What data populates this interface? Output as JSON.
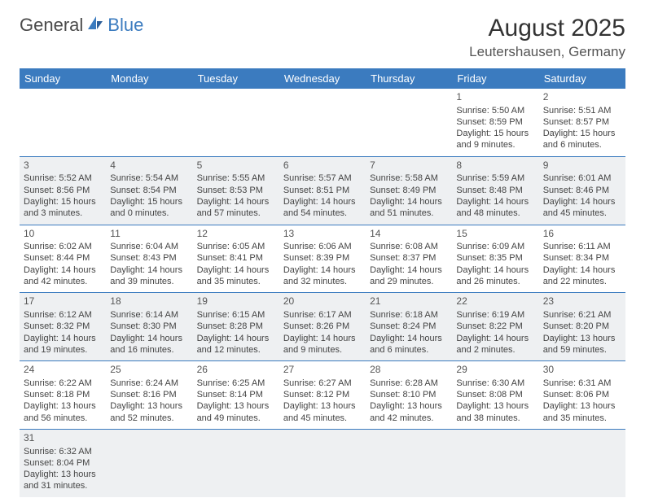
{
  "logo": {
    "word1": "General",
    "word2": "Blue"
  },
  "title": "August 2025",
  "location": "Leutershausen, Germany",
  "colors": {
    "header_bg": "#3b7bbf",
    "header_text": "#ffffff",
    "shade_bg": "#eef0f2",
    "border": "#3b7bbf",
    "text": "#444444"
  },
  "weekdays": [
    "Sunday",
    "Monday",
    "Tuesday",
    "Wednesday",
    "Thursday",
    "Friday",
    "Saturday"
  ],
  "weeks": [
    [
      null,
      null,
      null,
      null,
      null,
      {
        "n": "1",
        "sr": "Sunrise: 5:50 AM",
        "ss": "Sunset: 8:59 PM",
        "d1": "Daylight: 15 hours",
        "d2": "and 9 minutes."
      },
      {
        "n": "2",
        "sr": "Sunrise: 5:51 AM",
        "ss": "Sunset: 8:57 PM",
        "d1": "Daylight: 15 hours",
        "d2": "and 6 minutes."
      }
    ],
    [
      {
        "n": "3",
        "sr": "Sunrise: 5:52 AM",
        "ss": "Sunset: 8:56 PM",
        "d1": "Daylight: 15 hours",
        "d2": "and 3 minutes."
      },
      {
        "n": "4",
        "sr": "Sunrise: 5:54 AM",
        "ss": "Sunset: 8:54 PM",
        "d1": "Daylight: 15 hours",
        "d2": "and 0 minutes."
      },
      {
        "n": "5",
        "sr": "Sunrise: 5:55 AM",
        "ss": "Sunset: 8:53 PM",
        "d1": "Daylight: 14 hours",
        "d2": "and 57 minutes."
      },
      {
        "n": "6",
        "sr": "Sunrise: 5:57 AM",
        "ss": "Sunset: 8:51 PM",
        "d1": "Daylight: 14 hours",
        "d2": "and 54 minutes."
      },
      {
        "n": "7",
        "sr": "Sunrise: 5:58 AM",
        "ss": "Sunset: 8:49 PM",
        "d1": "Daylight: 14 hours",
        "d2": "and 51 minutes."
      },
      {
        "n": "8",
        "sr": "Sunrise: 5:59 AM",
        "ss": "Sunset: 8:48 PM",
        "d1": "Daylight: 14 hours",
        "d2": "and 48 minutes."
      },
      {
        "n": "9",
        "sr": "Sunrise: 6:01 AM",
        "ss": "Sunset: 8:46 PM",
        "d1": "Daylight: 14 hours",
        "d2": "and 45 minutes."
      }
    ],
    [
      {
        "n": "10",
        "sr": "Sunrise: 6:02 AM",
        "ss": "Sunset: 8:44 PM",
        "d1": "Daylight: 14 hours",
        "d2": "and 42 minutes."
      },
      {
        "n": "11",
        "sr": "Sunrise: 6:04 AM",
        "ss": "Sunset: 8:43 PM",
        "d1": "Daylight: 14 hours",
        "d2": "and 39 minutes."
      },
      {
        "n": "12",
        "sr": "Sunrise: 6:05 AM",
        "ss": "Sunset: 8:41 PM",
        "d1": "Daylight: 14 hours",
        "d2": "and 35 minutes."
      },
      {
        "n": "13",
        "sr": "Sunrise: 6:06 AM",
        "ss": "Sunset: 8:39 PM",
        "d1": "Daylight: 14 hours",
        "d2": "and 32 minutes."
      },
      {
        "n": "14",
        "sr": "Sunrise: 6:08 AM",
        "ss": "Sunset: 8:37 PM",
        "d1": "Daylight: 14 hours",
        "d2": "and 29 minutes."
      },
      {
        "n": "15",
        "sr": "Sunrise: 6:09 AM",
        "ss": "Sunset: 8:35 PM",
        "d1": "Daylight: 14 hours",
        "d2": "and 26 minutes."
      },
      {
        "n": "16",
        "sr": "Sunrise: 6:11 AM",
        "ss": "Sunset: 8:34 PM",
        "d1": "Daylight: 14 hours",
        "d2": "and 22 minutes."
      }
    ],
    [
      {
        "n": "17",
        "sr": "Sunrise: 6:12 AM",
        "ss": "Sunset: 8:32 PM",
        "d1": "Daylight: 14 hours",
        "d2": "and 19 minutes."
      },
      {
        "n": "18",
        "sr": "Sunrise: 6:14 AM",
        "ss": "Sunset: 8:30 PM",
        "d1": "Daylight: 14 hours",
        "d2": "and 16 minutes."
      },
      {
        "n": "19",
        "sr": "Sunrise: 6:15 AM",
        "ss": "Sunset: 8:28 PM",
        "d1": "Daylight: 14 hours",
        "d2": "and 12 minutes."
      },
      {
        "n": "20",
        "sr": "Sunrise: 6:17 AM",
        "ss": "Sunset: 8:26 PM",
        "d1": "Daylight: 14 hours",
        "d2": "and 9 minutes."
      },
      {
        "n": "21",
        "sr": "Sunrise: 6:18 AM",
        "ss": "Sunset: 8:24 PM",
        "d1": "Daylight: 14 hours",
        "d2": "and 6 minutes."
      },
      {
        "n": "22",
        "sr": "Sunrise: 6:19 AM",
        "ss": "Sunset: 8:22 PM",
        "d1": "Daylight: 14 hours",
        "d2": "and 2 minutes."
      },
      {
        "n": "23",
        "sr": "Sunrise: 6:21 AM",
        "ss": "Sunset: 8:20 PM",
        "d1": "Daylight: 13 hours",
        "d2": "and 59 minutes."
      }
    ],
    [
      {
        "n": "24",
        "sr": "Sunrise: 6:22 AM",
        "ss": "Sunset: 8:18 PM",
        "d1": "Daylight: 13 hours",
        "d2": "and 56 minutes."
      },
      {
        "n": "25",
        "sr": "Sunrise: 6:24 AM",
        "ss": "Sunset: 8:16 PM",
        "d1": "Daylight: 13 hours",
        "d2": "and 52 minutes."
      },
      {
        "n": "26",
        "sr": "Sunrise: 6:25 AM",
        "ss": "Sunset: 8:14 PM",
        "d1": "Daylight: 13 hours",
        "d2": "and 49 minutes."
      },
      {
        "n": "27",
        "sr": "Sunrise: 6:27 AM",
        "ss": "Sunset: 8:12 PM",
        "d1": "Daylight: 13 hours",
        "d2": "and 45 minutes."
      },
      {
        "n": "28",
        "sr": "Sunrise: 6:28 AM",
        "ss": "Sunset: 8:10 PM",
        "d1": "Daylight: 13 hours",
        "d2": "and 42 minutes."
      },
      {
        "n": "29",
        "sr": "Sunrise: 6:30 AM",
        "ss": "Sunset: 8:08 PM",
        "d1": "Daylight: 13 hours",
        "d2": "and 38 minutes."
      },
      {
        "n": "30",
        "sr": "Sunrise: 6:31 AM",
        "ss": "Sunset: 8:06 PM",
        "d1": "Daylight: 13 hours",
        "d2": "and 35 minutes."
      }
    ],
    [
      {
        "n": "31",
        "sr": "Sunrise: 6:32 AM",
        "ss": "Sunset: 8:04 PM",
        "d1": "Daylight: 13 hours",
        "d2": "and 31 minutes."
      },
      null,
      null,
      null,
      null,
      null,
      null
    ]
  ],
  "shaded_rows": [
    1,
    3,
    5
  ]
}
